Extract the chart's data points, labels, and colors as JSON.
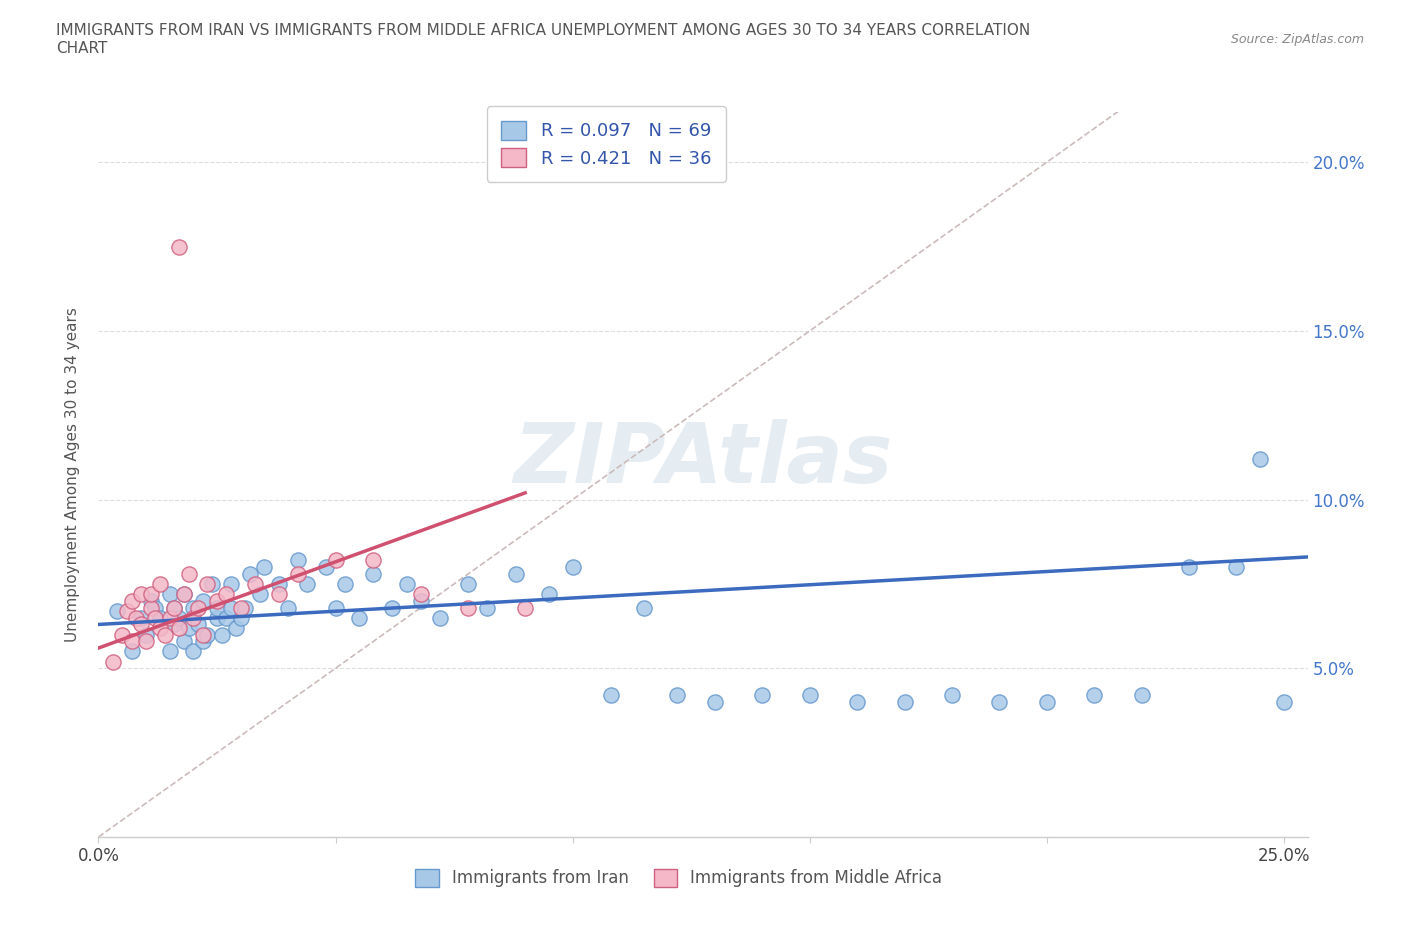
{
  "title": "IMMIGRANTS FROM IRAN VS IMMIGRANTS FROM MIDDLE AFRICA UNEMPLOYMENT AMONG AGES 30 TO 34 YEARS CORRELATION\nCHART",
  "source": "Source: ZipAtlas.com",
  "ylabel": "Unemployment Among Ages 30 to 34 years",
  "xlim": [
    0.0,
    0.255
  ],
  "ylim": [
    0.0,
    0.215
  ],
  "iran_color": "#a8c8e8",
  "iran_edge_color": "#6699cc",
  "middle_africa_color": "#f4b8c8",
  "middle_africa_edge_color": "#d06080",
  "iran_line_color": "#3b6abf",
  "middle_africa_line_color": "#d05070",
  "diag_line_color": "#ccbbbb",
  "R_iran": 0.097,
  "N_iran": 69,
  "R_middle_africa": 0.421,
  "N_middle_africa": 36,
  "legend_label_iran": "Immigrants from Iran",
  "legend_label_middle_africa": "Immigrants from Middle Africa",
  "watermark": "ZIPAtlas",
  "iran_x": [
    0.004,
    0.007,
    0.009,
    0.01,
    0.011,
    0.012,
    0.013,
    0.015,
    0.015,
    0.016,
    0.016,
    0.017,
    0.018,
    0.018,
    0.019,
    0.02,
    0.02,
    0.021,
    0.022,
    0.022,
    0.023,
    0.024,
    0.025,
    0.025,
    0.026,
    0.027,
    0.028,
    0.028,
    0.029,
    0.03,
    0.031,
    0.032,
    0.034,
    0.035,
    0.038,
    0.04,
    0.042,
    0.044,
    0.048,
    0.05,
    0.052,
    0.055,
    0.058,
    0.062,
    0.065,
    0.068,
    0.072,
    0.078,
    0.082,
    0.088,
    0.095,
    0.1,
    0.108,
    0.115,
    0.122,
    0.13,
    0.14,
    0.15,
    0.16,
    0.17,
    0.18,
    0.19,
    0.2,
    0.21,
    0.22,
    0.23,
    0.24,
    0.245,
    0.25
  ],
  "iran_y": [
    0.067,
    0.055,
    0.065,
    0.06,
    0.07,
    0.068,
    0.065,
    0.055,
    0.072,
    0.063,
    0.068,
    0.065,
    0.058,
    0.072,
    0.062,
    0.055,
    0.068,
    0.063,
    0.058,
    0.07,
    0.06,
    0.075,
    0.065,
    0.068,
    0.06,
    0.065,
    0.068,
    0.075,
    0.062,
    0.065,
    0.068,
    0.078,
    0.072,
    0.08,
    0.075,
    0.068,
    0.082,
    0.075,
    0.08,
    0.068,
    0.075,
    0.065,
    0.078,
    0.068,
    0.075,
    0.07,
    0.065,
    0.075,
    0.068,
    0.078,
    0.072,
    0.08,
    0.042,
    0.068,
    0.042,
    0.04,
    0.042,
    0.042,
    0.04,
    0.04,
    0.042,
    0.04,
    0.04,
    0.042,
    0.042,
    0.08,
    0.08,
    0.112,
    0.04
  ],
  "middle_africa_x": [
    0.003,
    0.005,
    0.006,
    0.007,
    0.007,
    0.008,
    0.009,
    0.009,
    0.01,
    0.011,
    0.011,
    0.012,
    0.013,
    0.013,
    0.014,
    0.015,
    0.016,
    0.017,
    0.017,
    0.018,
    0.019,
    0.02,
    0.021,
    0.022,
    0.023,
    0.025,
    0.027,
    0.03,
    0.033,
    0.038,
    0.042,
    0.05,
    0.058,
    0.068,
    0.078,
    0.09
  ],
  "middle_africa_y": [
    0.052,
    0.06,
    0.067,
    0.058,
    0.07,
    0.065,
    0.063,
    0.072,
    0.058,
    0.068,
    0.072,
    0.065,
    0.062,
    0.075,
    0.06,
    0.065,
    0.068,
    0.062,
    0.175,
    0.072,
    0.078,
    0.065,
    0.068,
    0.06,
    0.075,
    0.07,
    0.072,
    0.068,
    0.075,
    0.072,
    0.078,
    0.082,
    0.082,
    0.072,
    0.068,
    0.068
  ],
  "iran_trend_x0": 0.0,
  "iran_trend_x1": 0.255,
  "iran_trend_y0": 0.063,
  "iran_trend_y1": 0.083,
  "ma_trend_x0": 0.0,
  "ma_trend_x1": 0.09,
  "ma_trend_y0": 0.056,
  "ma_trend_y1": 0.102
}
